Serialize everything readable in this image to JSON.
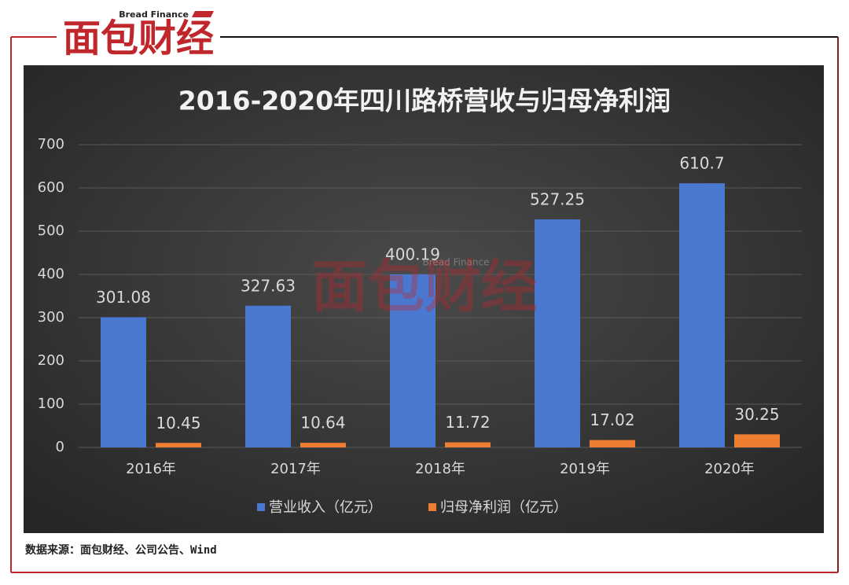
{
  "brand": {
    "name": "面包财经",
    "english": "Bread Finance"
  },
  "source": "数据来源：面包财经、公司公告、Wind",
  "chart_data": {
    "type": "bar",
    "title": "2016-2020年四川路桥营收与归母净利润",
    "categories": [
      "2016年",
      "2017年",
      "2018年",
      "2019年",
      "2020年"
    ],
    "series": [
      {
        "name": "营业收入（亿元）",
        "color": "#4a78d0",
        "values": [
          301.08,
          327.63,
          400.19,
          527.25,
          610.7
        ]
      },
      {
        "name": "归母净利润（亿元）",
        "color": "#ed7d31",
        "values": [
          10.45,
          10.64,
          11.72,
          17.02,
          30.25
        ]
      }
    ],
    "ylim": [
      0,
      700
    ],
    "yticks": [
      0,
      100,
      200,
      300,
      400,
      500,
      600,
      700
    ],
    "grid": true,
    "legend": "bottom"
  }
}
